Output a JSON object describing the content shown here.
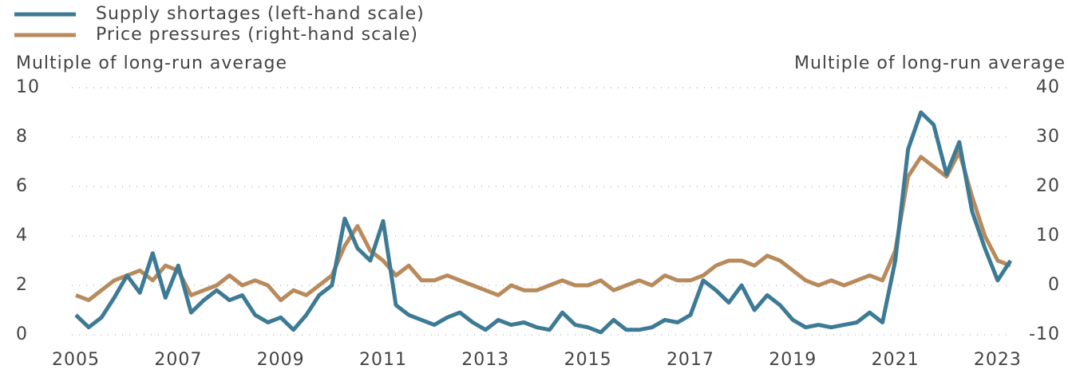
{
  "chart_data": {
    "type": "line",
    "ylabel": "Multiple of long-run average",
    "y2label": "Multiple of long-run average",
    "x": [
      2005.0,
      2005.25,
      2005.5,
      2005.75,
      2006.0,
      2006.25,
      2006.5,
      2006.75,
      2007.0,
      2007.25,
      2007.5,
      2007.75,
      2008.0,
      2008.25,
      2008.5,
      2008.75,
      2009.0,
      2009.25,
      2009.5,
      2009.75,
      2010.0,
      2010.25,
      2010.5,
      2010.75,
      2011.0,
      2011.25,
      2011.5,
      2011.75,
      2012.0,
      2012.25,
      2012.5,
      2012.75,
      2013.0,
      2013.25,
      2013.5,
      2013.75,
      2014.0,
      2014.25,
      2014.5,
      2014.75,
      2015.0,
      2015.25,
      2015.5,
      2015.75,
      2016.0,
      2016.25,
      2016.5,
      2016.75,
      2017.0,
      2017.25,
      2017.5,
      2017.75,
      2018.0,
      2018.25,
      2018.5,
      2018.75,
      2019.0,
      2019.25,
      2019.5,
      2019.75,
      2020.0,
      2020.25,
      2020.5,
      2020.75,
      2021.0,
      2021.25,
      2021.5,
      2021.75,
      2022.0,
      2022.25,
      2022.5,
      2022.75,
      2023.0,
      2023.25
    ],
    "series": [
      {
        "name": "Supply shortages (left-hand scale)",
        "color": "#3d7a95",
        "values": [
          0.8,
          0.3,
          0.7,
          1.5,
          2.4,
          1.7,
          3.3,
          1.5,
          2.8,
          0.9,
          1.4,
          1.8,
          1.4,
          1.6,
          0.8,
          0.5,
          0.7,
          0.2,
          0.8,
          1.6,
          2.0,
          4.7,
          3.5,
          3.0,
          4.6,
          1.2,
          0.8,
          0.6,
          0.4,
          0.7,
          0.9,
          0.5,
          0.2,
          0.6,
          0.4,
          0.5,
          0.3,
          0.2,
          0.9,
          0.4,
          0.3,
          0.1,
          0.6,
          0.2,
          0.2,
          0.3,
          0.6,
          0.5,
          0.8,
          2.2,
          1.8,
          1.3,
          2.0,
          1.0,
          1.6,
          1.2,
          0.6,
          0.3,
          0.4,
          0.3,
          0.4,
          0.5,
          0.9,
          0.5,
          3.0,
          7.5,
          9.0,
          8.5,
          6.5,
          7.8,
          5.0,
          3.5,
          2.2,
          3.0
        ]
      },
      {
        "name": "Price pressures (right-hand scale)",
        "color": "#b88a5c",
        "axis": "y2",
        "values": [
          -2,
          -3,
          -1,
          1,
          2,
          3,
          1,
          4,
          3,
          -2,
          -1,
          0,
          2,
          0,
          1,
          0,
          -3,
          -1,
          -2,
          0,
          2,
          8,
          12,
          7,
          5,
          2,
          4,
          1,
          1,
          2,
          1,
          0,
          -1,
          -2,
          0,
          -1,
          -1,
          0,
          1,
          0,
          0,
          1,
          -1,
          0,
          1,
          0,
          2,
          1,
          1,
          2,
          4,
          5,
          5,
          4,
          6,
          5,
          3,
          1,
          0,
          1,
          0,
          1,
          2,
          1,
          7,
          22,
          26,
          24,
          22,
          27,
          18,
          10,
          5,
          4
        ]
      }
    ],
    "xlim": [
      2004.9,
      2023.5
    ],
    "xticks": [
      2005,
      2007,
      2009,
      2011,
      2013,
      2015,
      2017,
      2019,
      2021,
      2023
    ],
    "ylim": [
      0,
      10
    ],
    "yticks": [
      0,
      2,
      4,
      6,
      8,
      10
    ],
    "y2lim": [
      -10,
      40
    ],
    "y2ticks": [
      -10,
      0,
      10,
      20,
      30,
      40
    ],
    "grid": true,
    "legend": "top-left"
  }
}
